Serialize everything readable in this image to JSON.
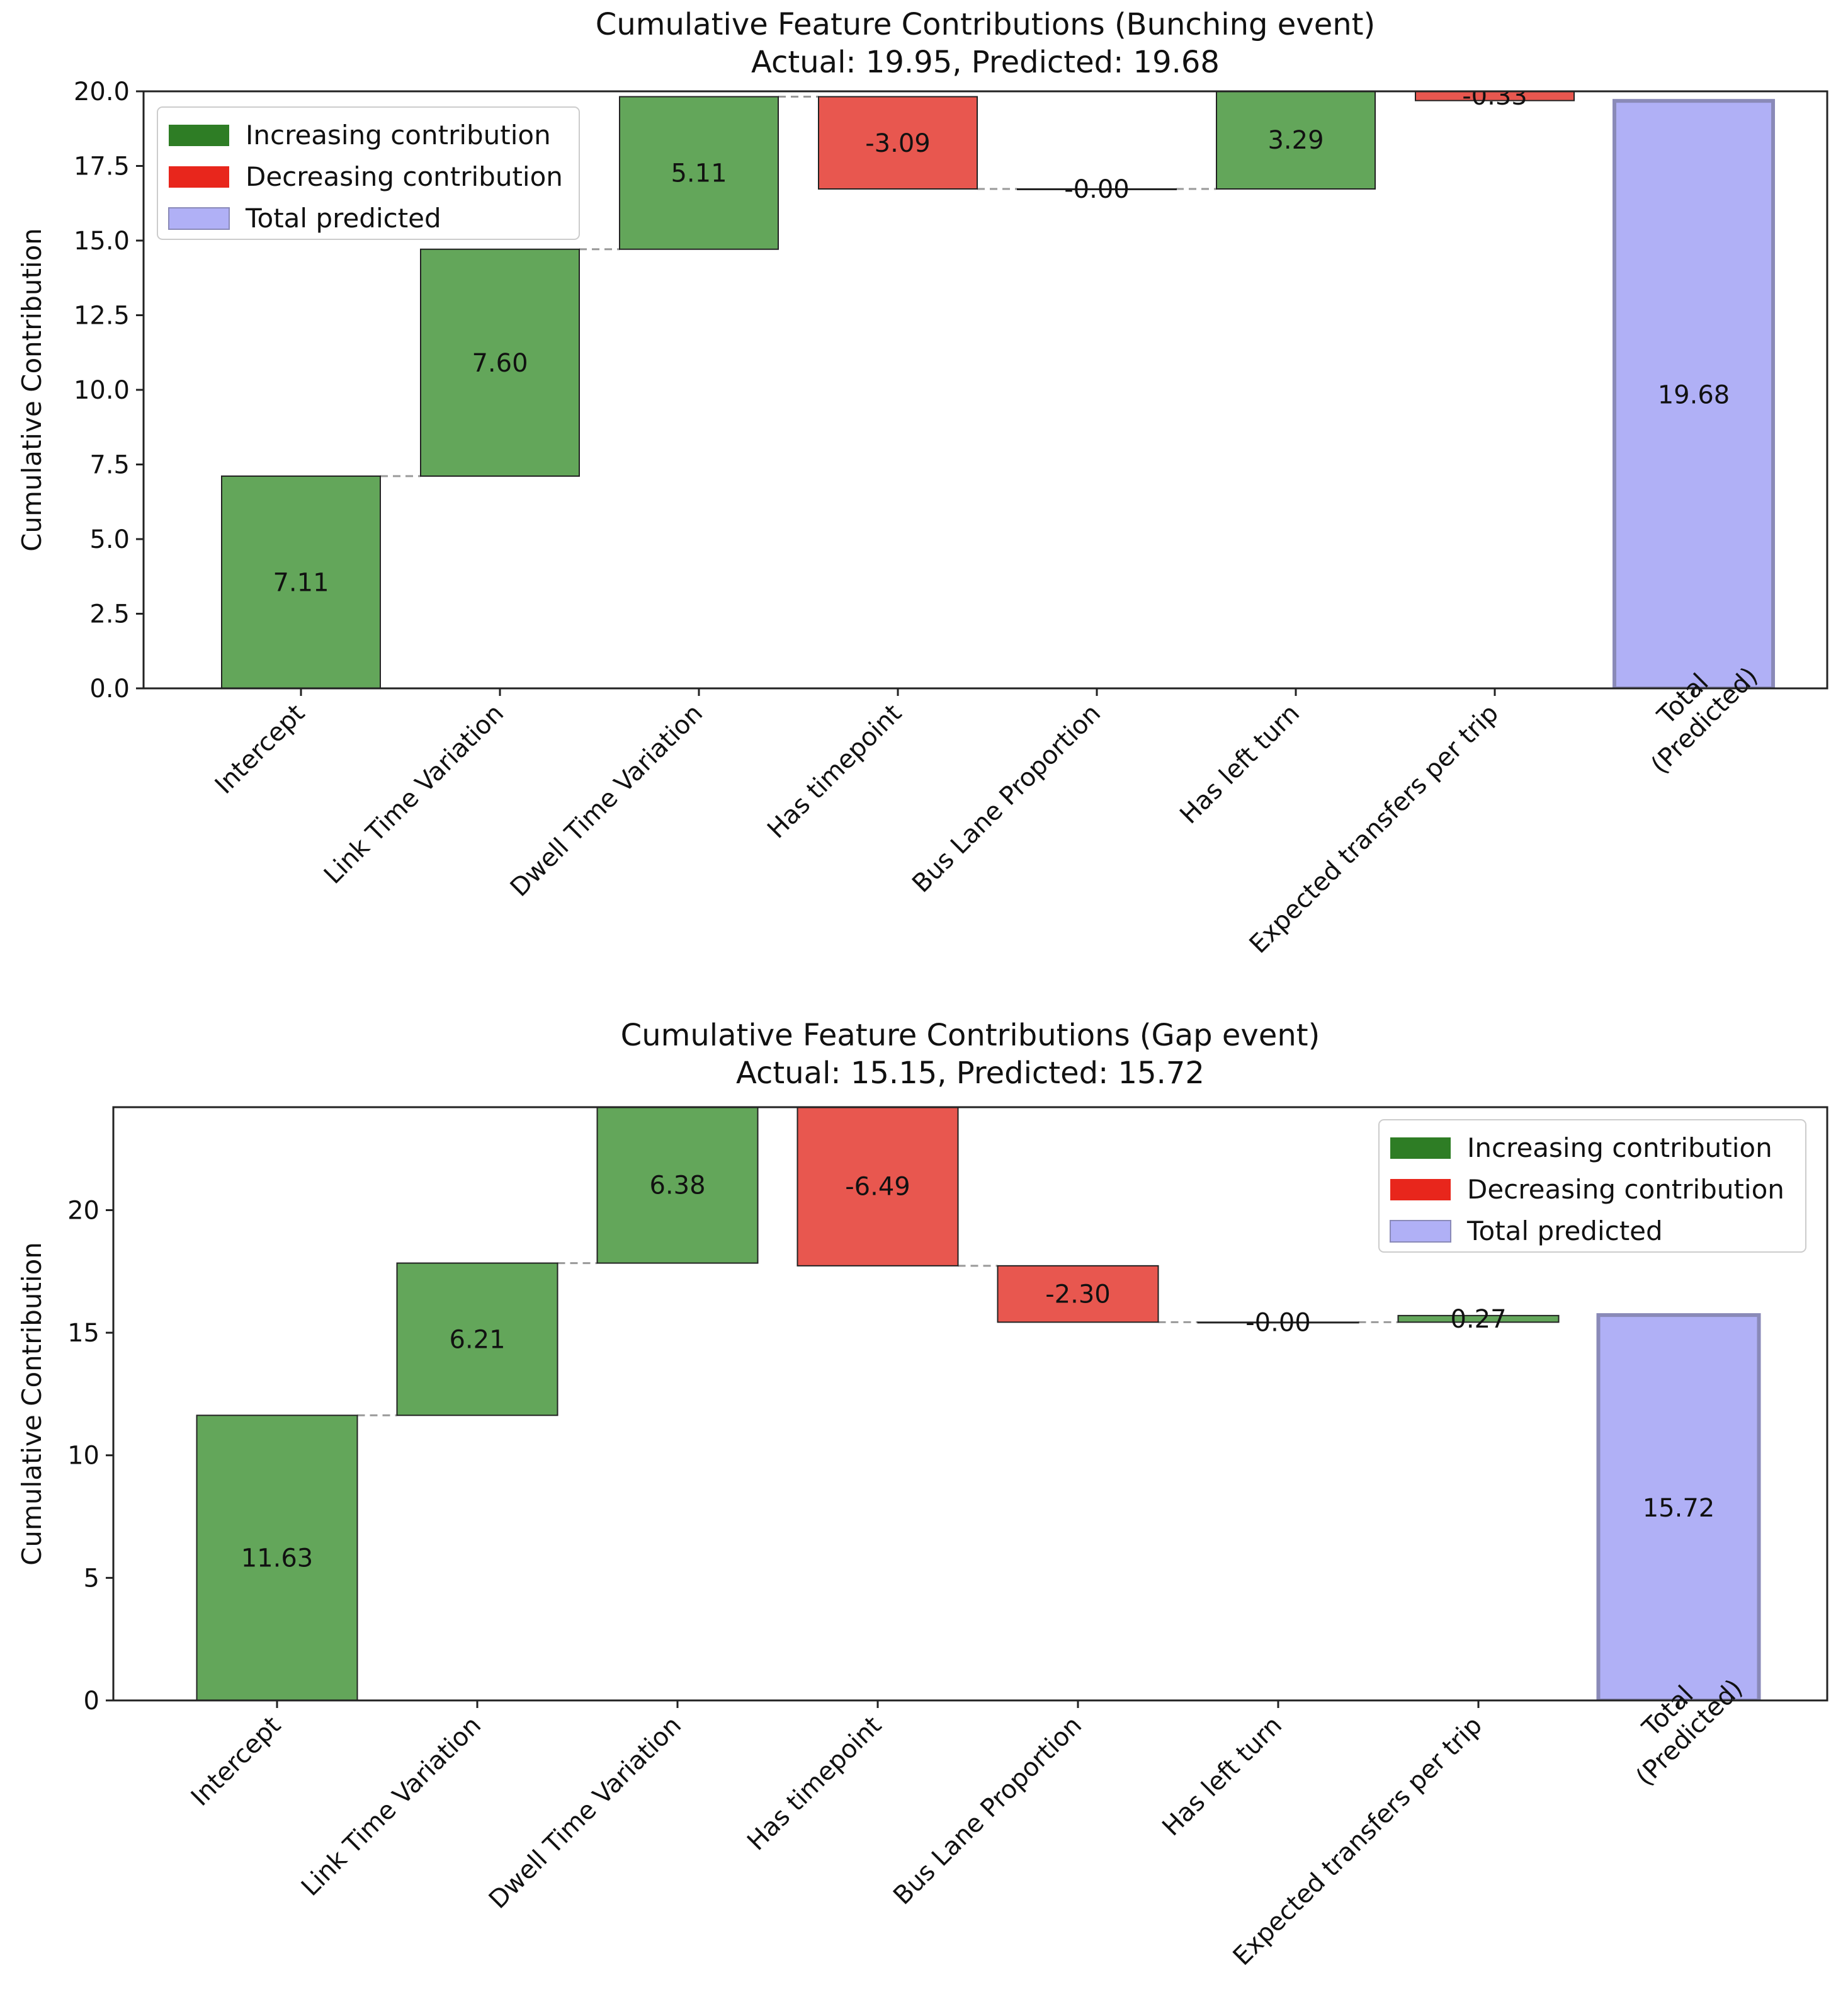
{
  "colors": {
    "increase": "#63a65a",
    "increase_legend": "#2e7d25",
    "decrease": "#e8574f",
    "decrease_legend": "#e8261c",
    "total": "#b0b0f6",
    "total_edge": "#8a8ab8",
    "connector": "#999999"
  },
  "chart_data": [
    {
      "type": "waterfall",
      "title": "Cumulative Feature Contributions (Bunching event)",
      "subtitle": "Actual: 19.95, Predicted: 19.68",
      "xlabel": "",
      "ylabel": "Cumulative Contribution",
      "ylim": [
        0,
        20
      ],
      "yticks": [
        "0.0",
        "2.5",
        "5.0",
        "7.5",
        "10.0",
        "12.5",
        "15.0",
        "17.5",
        "20.0"
      ],
      "legend_position": "top-left",
      "legend": [
        "Increasing contribution",
        "Decreasing contribution",
        "Total predicted"
      ],
      "categories": [
        "Intercept",
        "Link Time Variation",
        "Dwell Time Variation",
        "Has timepoint",
        "Bus Lane Proportion",
        "Has left turn",
        "Expected transfers per trip",
        "Total\n(Predicted)"
      ],
      "values": [
        7.11,
        7.6,
        5.11,
        -3.09,
        -0.0,
        3.29,
        -0.33,
        19.68
      ],
      "labels": [
        "7.11",
        "7.60",
        "5.11",
        "-3.09",
        "-0.00",
        "3.29",
        "-0.33",
        "19.68"
      ],
      "kinds": [
        "inc",
        "inc",
        "inc",
        "dec",
        "dec",
        "inc",
        "dec",
        "total"
      ]
    },
    {
      "type": "waterfall",
      "title": "Cumulative Feature Contributions (Gap event)",
      "subtitle": "Actual: 15.15, Predicted: 15.72",
      "xlabel": "",
      "ylabel": "Cumulative Contribution",
      "ylim": [
        0,
        24.2
      ],
      "yticks": [
        "0",
        "5",
        "10",
        "15",
        "20"
      ],
      "legend_position": "top-right",
      "legend": [
        "Increasing contribution",
        "Decreasing contribution",
        "Total predicted"
      ],
      "categories": [
        "Intercept",
        "Link Time Variation",
        "Dwell Time Variation",
        "Has timepoint",
        "Bus Lane Proportion",
        "Has left turn",
        "Expected transfers per trip",
        "Total\n(Predicted)"
      ],
      "values": [
        11.63,
        6.21,
        6.38,
        -6.49,
        -2.3,
        -0.0,
        0.27,
        15.72
      ],
      "labels": [
        "11.63",
        "6.21",
        "6.38",
        "-6.49",
        "-2.30",
        "-0.00",
        "0.27",
        "15.72"
      ],
      "kinds": [
        "inc",
        "inc",
        "inc",
        "dec",
        "dec",
        "dec",
        "inc",
        "total"
      ]
    }
  ]
}
